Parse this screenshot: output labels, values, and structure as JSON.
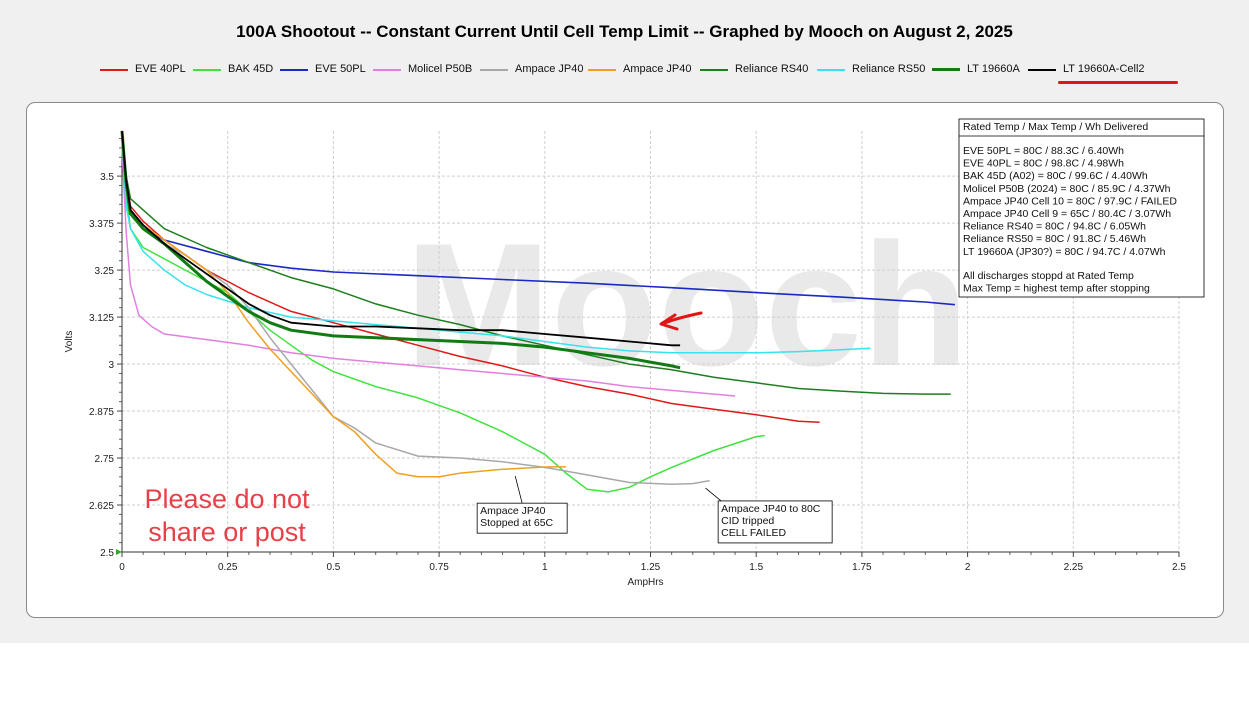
{
  "title": "100A Shootout -- Constant Current Until Cell Temp Limit -- Graphed by Mooch on August 2, 2025",
  "watermark": "Mooch",
  "warning": [
    "Please do not",
    "share or post"
  ],
  "colors": {
    "highlight_underline": "#e01515",
    "arrow": "#e01515",
    "grid": "#cfcfcf"
  },
  "info_box": {
    "header": "Rated Temp / Max Temp / Wh Delivered",
    "lines": [
      "EVE 50PL = 80C / 88.3C / 6.40Wh",
      "EVE 40PL = 80C / 98.8C / 4.98Wh",
      "BAK 45D (A02) = 80C / 99.6C / 4.40Wh",
      "Molicel P50B (2024) = 80C / 85.9C / 4.37Wh",
      "Ampace JP40 Cell 10 = 80C / 97.9C / FAILED",
      "Ampace JP40 Cell 9 = 65C / 80.4C / 3.07Wh",
      "Reliance RS40 = 80C / 94.8C / 6.05Wh",
      "Reliance RS50 = 80C / 91.8C / 5.46Wh",
      "LT 19660A (JP30?) = 80C / 94.7C / 4.07Wh"
    ],
    "footer": [
      "All discharges stoppd at Rated Temp",
      "Max Temp = highest temp after stopping"
    ]
  },
  "annotations": [
    {
      "lines": [
        "Ampace JP40",
        "Stopped at 65C"
      ],
      "point": [
        0.93,
        2.702
      ],
      "box": [
        0.84,
        2.59
      ]
    },
    {
      "lines": [
        "Ampace JP40 to 80C",
        "CID tripped",
        "CELL FAILED"
      ],
      "point": [
        1.38,
        2.67
      ],
      "box": [
        1.41,
        2.58
      ]
    }
  ],
  "chart_data": {
    "type": "line",
    "xlabel": "AmpHrs",
    "ylabel": "Volts",
    "xlim": [
      0,
      2.5
    ],
    "ylim": [
      2.5,
      3.62
    ],
    "xticks": [
      "0",
      "0.25",
      "0.5",
      "0.75",
      "1",
      "1.25",
      "1.5",
      "1.75",
      "2",
      "2.25",
      "2.5"
    ],
    "yticks": [
      "2.5",
      "2.625",
      "2.75",
      "2.875",
      "3",
      "3.125",
      "3.25",
      "3.375",
      "3.5"
    ],
    "grid": true,
    "legend_position": "top",
    "series": [
      {
        "name": "EVE 40PL",
        "color": "#e01818",
        "width": 1.5,
        "points": [
          [
            0,
            3.62
          ],
          [
            0.01,
            3.5
          ],
          [
            0.02,
            3.42
          ],
          [
            0.05,
            3.38
          ],
          [
            0.1,
            3.33
          ],
          [
            0.15,
            3.29
          ],
          [
            0.2,
            3.25
          ],
          [
            0.25,
            3.22
          ],
          [
            0.3,
            3.19
          ],
          [
            0.4,
            3.14
          ],
          [
            0.5,
            3.11
          ],
          [
            0.6,
            3.08
          ],
          [
            0.7,
            3.05
          ],
          [
            0.8,
            3.02
          ],
          [
            0.9,
            2.995
          ],
          [
            1.0,
            2.965
          ],
          [
            1.1,
            2.94
          ],
          [
            1.2,
            2.92
          ],
          [
            1.3,
            2.895
          ],
          [
            1.4,
            2.88
          ],
          [
            1.5,
            2.865
          ],
          [
            1.6,
            2.848
          ],
          [
            1.65,
            2.845
          ]
        ]
      },
      {
        "name": "BAK 45D",
        "color": "#3fe33f",
        "width": 1.5,
        "points": [
          [
            0,
            3.6
          ],
          [
            0.01,
            3.45
          ],
          [
            0.02,
            3.36
          ],
          [
            0.05,
            3.31
          ],
          [
            0.1,
            3.28
          ],
          [
            0.15,
            3.25
          ],
          [
            0.2,
            3.22
          ],
          [
            0.25,
            3.19
          ],
          [
            0.3,
            3.14
          ],
          [
            0.35,
            3.09
          ],
          [
            0.4,
            3.05
          ],
          [
            0.45,
            3.01
          ],
          [
            0.5,
            2.98
          ],
          [
            0.6,
            2.94
          ],
          [
            0.7,
            2.91
          ],
          [
            0.8,
            2.87
          ],
          [
            0.9,
            2.82
          ],
          [
            0.95,
            2.79
          ],
          [
            1.0,
            2.76
          ],
          [
            1.05,
            2.71
          ],
          [
            1.1,
            2.667
          ],
          [
            1.15,
            2.66
          ],
          [
            1.2,
            2.672
          ],
          [
            1.25,
            2.7
          ],
          [
            1.3,
            2.725
          ],
          [
            1.4,
            2.77
          ],
          [
            1.5,
            2.807
          ],
          [
            1.52,
            2.81
          ]
        ]
      },
      {
        "name": "EVE 50PL",
        "color": "#1a28c8",
        "width": 1.6,
        "points": [
          [
            0,
            3.62
          ],
          [
            0.01,
            3.48
          ],
          [
            0.02,
            3.4
          ],
          [
            0.05,
            3.36
          ],
          [
            0.1,
            3.33
          ],
          [
            0.2,
            3.3
          ],
          [
            0.3,
            3.27
          ],
          [
            0.4,
            3.255
          ],
          [
            0.5,
            3.245
          ],
          [
            0.7,
            3.235
          ],
          [
            0.9,
            3.225
          ],
          [
            1.1,
            3.215
          ],
          [
            1.3,
            3.203
          ],
          [
            1.5,
            3.19
          ],
          [
            1.7,
            3.178
          ],
          [
            1.9,
            3.165
          ],
          [
            1.97,
            3.158
          ]
        ]
      },
      {
        "name": "Molicel P50B",
        "color": "#e080e0",
        "width": 1.5,
        "points": [
          [
            0,
            3.58
          ],
          [
            0.01,
            3.35
          ],
          [
            0.02,
            3.21
          ],
          [
            0.04,
            3.13
          ],
          [
            0.07,
            3.1
          ],
          [
            0.1,
            3.08
          ],
          [
            0.2,
            3.065
          ],
          [
            0.3,
            3.05
          ],
          [
            0.4,
            3.03
          ],
          [
            0.5,
            3.015
          ],
          [
            0.6,
            3.005
          ],
          [
            0.7,
            2.995
          ],
          [
            0.8,
            2.985
          ],
          [
            0.9,
            2.975
          ],
          [
            1.0,
            2.965
          ],
          [
            1.1,
            2.955
          ],
          [
            1.2,
            2.94
          ],
          [
            1.3,
            2.93
          ],
          [
            1.4,
            2.92
          ],
          [
            1.45,
            2.915
          ]
        ]
      },
      {
        "name": "Ampace JP40",
        "color": "#a8a8a8",
        "width": 1.5,
        "points": [
          [
            0,
            3.6
          ],
          [
            0.01,
            3.46
          ],
          [
            0.02,
            3.4
          ],
          [
            0.05,
            3.36
          ],
          [
            0.1,
            3.32
          ],
          [
            0.15,
            3.29
          ],
          [
            0.2,
            3.25
          ],
          [
            0.25,
            3.21
          ],
          [
            0.3,
            3.15
          ],
          [
            0.35,
            3.07
          ],
          [
            0.4,
            3.0
          ],
          [
            0.45,
            2.93
          ],
          [
            0.5,
            2.86
          ],
          [
            0.55,
            2.83
          ],
          [
            0.6,
            2.79
          ],
          [
            0.7,
            2.755
          ],
          [
            0.8,
            2.75
          ],
          [
            0.9,
            2.74
          ],
          [
            1.0,
            2.725
          ],
          [
            1.1,
            2.705
          ],
          [
            1.2,
            2.685
          ],
          [
            1.3,
            2.68
          ],
          [
            1.35,
            2.682
          ],
          [
            1.39,
            2.69
          ]
        ]
      },
      {
        "name": "Ampace JP40",
        "color": "#f0a020",
        "width": 1.5,
        "points": [
          [
            0,
            3.6
          ],
          [
            0.01,
            3.46
          ],
          [
            0.02,
            3.4
          ],
          [
            0.05,
            3.37
          ],
          [
            0.1,
            3.33
          ],
          [
            0.15,
            3.29
          ],
          [
            0.2,
            3.25
          ],
          [
            0.25,
            3.19
          ],
          [
            0.3,
            3.11
          ],
          [
            0.35,
            3.04
          ],
          [
            0.4,
            2.98
          ],
          [
            0.45,
            2.92
          ],
          [
            0.5,
            2.86
          ],
          [
            0.55,
            2.82
          ],
          [
            0.6,
            2.76
          ],
          [
            0.65,
            2.71
          ],
          [
            0.7,
            2.7
          ],
          [
            0.75,
            2.7
          ],
          [
            0.8,
            2.71
          ],
          [
            0.9,
            2.72
          ],
          [
            1.0,
            2.726
          ],
          [
            1.05,
            2.727
          ]
        ]
      },
      {
        "name": "Reliance RS40",
        "color": "#1e7e1e",
        "width": 1.5,
        "points": [
          [
            0,
            3.62
          ],
          [
            0.01,
            3.5
          ],
          [
            0.02,
            3.44
          ],
          [
            0.05,
            3.41
          ],
          [
            0.1,
            3.36
          ],
          [
            0.2,
            3.31
          ],
          [
            0.3,
            3.27
          ],
          [
            0.4,
            3.23
          ],
          [
            0.5,
            3.2
          ],
          [
            0.6,
            3.16
          ],
          [
            0.7,
            3.13
          ],
          [
            0.8,
            3.105
          ],
          [
            0.9,
            3.075
          ],
          [
            1.0,
            3.05
          ],
          [
            1.1,
            3.025
          ],
          [
            1.2,
            3.0
          ],
          [
            1.3,
            2.985
          ],
          [
            1.4,
            2.965
          ],
          [
            1.5,
            2.95
          ],
          [
            1.6,
            2.935
          ],
          [
            1.7,
            2.928
          ],
          [
            1.8,
            2.922
          ],
          [
            1.9,
            2.92
          ],
          [
            1.96,
            2.92
          ]
        ]
      },
      {
        "name": "Reliance RS50",
        "color": "#38e2ee",
        "width": 1.5,
        "points": [
          [
            0,
            3.6
          ],
          [
            0.01,
            3.42
          ],
          [
            0.02,
            3.36
          ],
          [
            0.05,
            3.3
          ],
          [
            0.1,
            3.25
          ],
          [
            0.15,
            3.21
          ],
          [
            0.2,
            3.185
          ],
          [
            0.3,
            3.15
          ],
          [
            0.4,
            3.125
          ],
          [
            0.5,
            3.115
          ],
          [
            0.6,
            3.105
          ],
          [
            0.7,
            3.095
          ],
          [
            0.8,
            3.085
          ],
          [
            0.9,
            3.075
          ],
          [
            1.0,
            3.06
          ],
          [
            1.1,
            3.045
          ],
          [
            1.2,
            3.035
          ],
          [
            1.3,
            3.03
          ],
          [
            1.4,
            3.03
          ],
          [
            1.5,
            3.03
          ],
          [
            1.6,
            3.033
          ],
          [
            1.7,
            3.038
          ],
          [
            1.77,
            3.042
          ]
        ]
      },
      {
        "name": "LT 19660A",
        "color": "#127a12",
        "width": 3,
        "points": [
          [
            0,
            3.62
          ],
          [
            0.01,
            3.48
          ],
          [
            0.02,
            3.4
          ],
          [
            0.05,
            3.36
          ],
          [
            0.1,
            3.32
          ],
          [
            0.15,
            3.27
          ],
          [
            0.2,
            3.22
          ],
          [
            0.25,
            3.18
          ],
          [
            0.3,
            3.14
          ],
          [
            0.35,
            3.11
          ],
          [
            0.4,
            3.09
          ],
          [
            0.5,
            3.075
          ],
          [
            0.6,
            3.07
          ],
          [
            0.7,
            3.065
          ],
          [
            0.8,
            3.06
          ],
          [
            0.9,
            3.055
          ],
          [
            1.0,
            3.045
          ],
          [
            1.1,
            3.03
          ],
          [
            1.2,
            3.015
          ],
          [
            1.3,
            2.995
          ],
          [
            1.32,
            2.99
          ]
        ]
      },
      {
        "name": "LT 19660A-Cell2",
        "color": "#000000",
        "width": 1.8,
        "points": [
          [
            0,
            3.62
          ],
          [
            0.01,
            3.49
          ],
          [
            0.02,
            3.41
          ],
          [
            0.05,
            3.37
          ],
          [
            0.1,
            3.32
          ],
          [
            0.15,
            3.28
          ],
          [
            0.2,
            3.24
          ],
          [
            0.25,
            3.2
          ],
          [
            0.3,
            3.16
          ],
          [
            0.35,
            3.13
          ],
          [
            0.4,
            3.11
          ],
          [
            0.5,
            3.1
          ],
          [
            0.6,
            3.1
          ],
          [
            0.7,
            3.095
          ],
          [
            0.8,
            3.09
          ],
          [
            0.9,
            3.09
          ],
          [
            1.0,
            3.08
          ],
          [
            1.1,
            3.07
          ],
          [
            1.2,
            3.06
          ],
          [
            1.3,
            3.05
          ],
          [
            1.32,
            3.05
          ]
        ]
      }
    ]
  }
}
